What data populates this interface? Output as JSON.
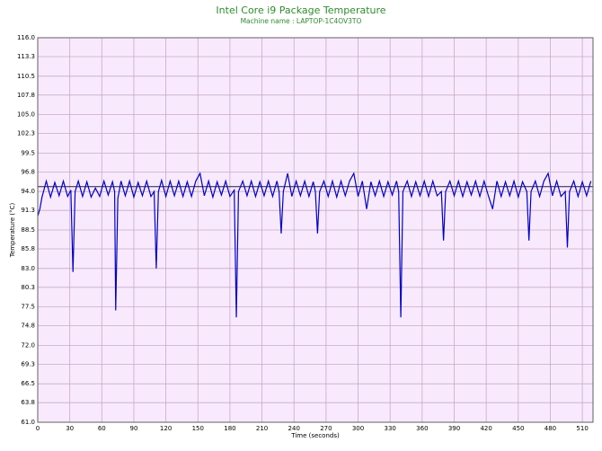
{
  "chart_data": {
    "type": "line",
    "title": "Intel Core i9 Package Temperature",
    "subtitle": "Machine name : LAPTOP-1C4OV3TO",
    "y_label": "Temperature (°C)",
    "x_label": "Time (seconds)",
    "xlim": [
      0,
      520
    ],
    "xticks": [
      0,
      30,
      60,
      90,
      120,
      150,
      180,
      210,
      240,
      270,
      300,
      330,
      360,
      390,
      420,
      450,
      480,
      510
    ],
    "ylim": [
      61,
      116
    ],
    "yticks": [
      {
        "value": 61,
        "label": "61.0"
      },
      63.8,
      66.5,
      69.3,
      {
        "value": 72,
        "label": "72.0"
      },
      74.8,
      77.5,
      80.3,
      {
        "value": 83,
        "label": "83.0"
      },
      85.8,
      88.5,
      91.3,
      {
        "value": 94,
        "label": "94.0"
      },
      96.8,
      99.5,
      102.3,
      {
        "value": 105,
        "label": "105.0"
      },
      107.8,
      110.5,
      113.3,
      {
        "value": 116,
        "label": "116.0"
      }
    ],
    "grid": true,
    "reference_line": 94.7,
    "series": [
      {
        "color": "#0000c8",
        "x": [
          0,
          2,
          4,
          8,
          12,
          16,
          20,
          24,
          28,
          31,
          33,
          35,
          38,
          42,
          46,
          50,
          54,
          58,
          62,
          66,
          70,
          72,
          73,
          75,
          78,
          82,
          86,
          90,
          94,
          98,
          102,
          106,
          109,
          111,
          113,
          116,
          120,
          124,
          128,
          132,
          136,
          140,
          144,
          148,
          152,
          156,
          160,
          164,
          168,
          172,
          176,
          180,
          184,
          186,
          188,
          192,
          196,
          200,
          204,
          208,
          212,
          216,
          220,
          224,
          226,
          228,
          230,
          234,
          238,
          242,
          246,
          250,
          254,
          258,
          260,
          262,
          264,
          268,
          272,
          276,
          280,
          284,
          288,
          292,
          296,
          300,
          304,
          308,
          312,
          316,
          320,
          324,
          328,
          332,
          336,
          338,
          340,
          342,
          346,
          350,
          354,
          358,
          362,
          366,
          370,
          374,
          378,
          380,
          382,
          386,
          390,
          394,
          398,
          402,
          406,
          410,
          414,
          418,
          422,
          426,
          430,
          434,
          438,
          442,
          446,
          450,
          454,
          458,
          460,
          462,
          466,
          470,
          474,
          478,
          482,
          486,
          490,
          494,
          496,
          498,
          502,
          506,
          510,
          514,
          518
        ],
        "values": [
          90.5,
          91.5,
          93.2,
          95.5,
          93.2,
          95.3,
          93.4,
          95.5,
          93.3,
          94.2,
          82.5,
          94.0,
          95.5,
          93.3,
          95.4,
          93.2,
          94.5,
          93.3,
          95.5,
          93.5,
          95.4,
          94.0,
          77.0,
          93.0,
          95.5,
          93.4,
          95.5,
          93.2,
          95.3,
          93.4,
          95.5,
          93.3,
          94.0,
          83.0,
          94.0,
          95.6,
          93.3,
          95.5,
          93.4,
          95.5,
          93.3,
          95.4,
          93.3,
          95.5,
          96.6,
          93.4,
          95.5,
          93.2,
          95.4,
          93.5,
          95.5,
          93.3,
          94.2,
          76.0,
          94.0,
          95.5,
          93.4,
          95.5,
          93.3,
          95.4,
          93.4,
          95.5,
          93.3,
          95.5,
          94.0,
          88.0,
          94.0,
          96.6,
          93.3,
          95.5,
          93.4,
          95.5,
          93.3,
          95.4,
          94.0,
          88.0,
          94.0,
          95.5,
          93.3,
          95.5,
          93.2,
          95.5,
          93.4,
          95.5,
          96.6,
          93.3,
          95.5,
          91.5,
          95.4,
          93.4,
          95.5,
          93.3,
          95.4,
          93.5,
          95.5,
          94.0,
          76.0,
          94.0,
          95.5,
          93.3,
          95.4,
          93.4,
          95.5,
          93.3,
          95.5,
          93.4,
          94.0,
          87.0,
          94.0,
          95.5,
          93.4,
          95.5,
          93.3,
          95.4,
          93.5,
          95.5,
          93.3,
          95.5,
          93.4,
          91.5,
          95.5,
          93.3,
          95.4,
          93.4,
          95.5,
          93.2,
          95.4,
          94.0,
          87.0,
          94.0,
          95.5,
          93.3,
          95.5,
          96.6,
          93.4,
          95.5,
          93.3,
          94.0,
          86.0,
          94.0,
          95.5,
          93.3,
          95.4,
          93.4,
          95.5
        ]
      }
    ]
  }
}
